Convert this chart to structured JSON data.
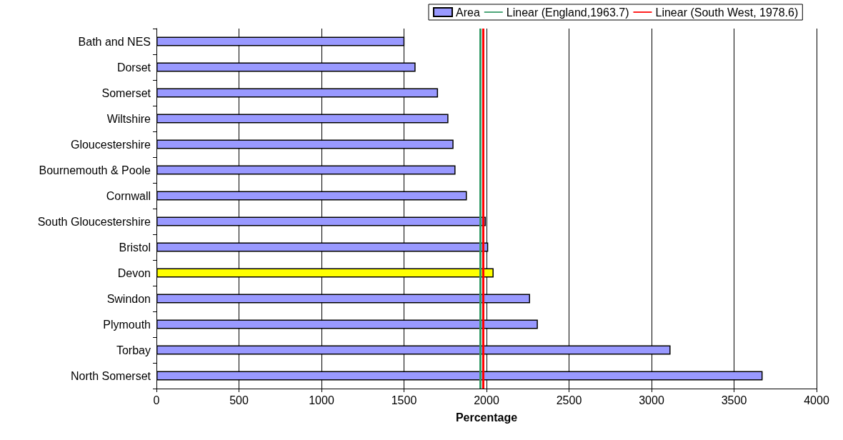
{
  "chart_data": {
    "type": "bar",
    "orientation": "horizontal",
    "xlabel": "Percentage",
    "categories": [
      "Bath and NES",
      "Dorset",
      "Somerset",
      "Wiltshire",
      "Gloucestershire",
      "Bournemouth & Poole",
      "Cornwall",
      "South Gloucestershire",
      "Bristol",
      "Devon",
      "Swindon",
      "Plymouth",
      "Torbay",
      "North Somerset"
    ],
    "series": [
      {
        "name": "Area",
        "color": "#9999ff",
        "colors": [
          "#9999ff",
          "#9999ff",
          "#9999ff",
          "#9999ff",
          "#9999ff",
          "#9999ff",
          "#9999ff",
          "#9999ff",
          "#9999ff",
          "#ffff00",
          "#9999ff",
          "#9999ff",
          "#9999ff",
          "#9999ff"
        ],
        "values": [
          1503,
          1570,
          1706,
          1769,
          1800,
          1812,
          1881,
          1996,
          2010,
          2043,
          2264,
          2311,
          3115,
          3673
        ]
      }
    ],
    "ref_lines": [
      {
        "axis": "x",
        "value": 1963.7,
        "label": "Linear (England,1963.7)",
        "color": "#339966"
      },
      {
        "axis": "x",
        "value": 1978.6,
        "label": "Linear (South West, 1978.6)",
        "color": "#ff0000"
      }
    ],
    "xlim": [
      0,
      4000
    ],
    "xticks": [
      0,
      500,
      1000,
      1500,
      2000,
      2500,
      3000,
      3500,
      4000
    ],
    "grid": "x",
    "legend": "top"
  }
}
